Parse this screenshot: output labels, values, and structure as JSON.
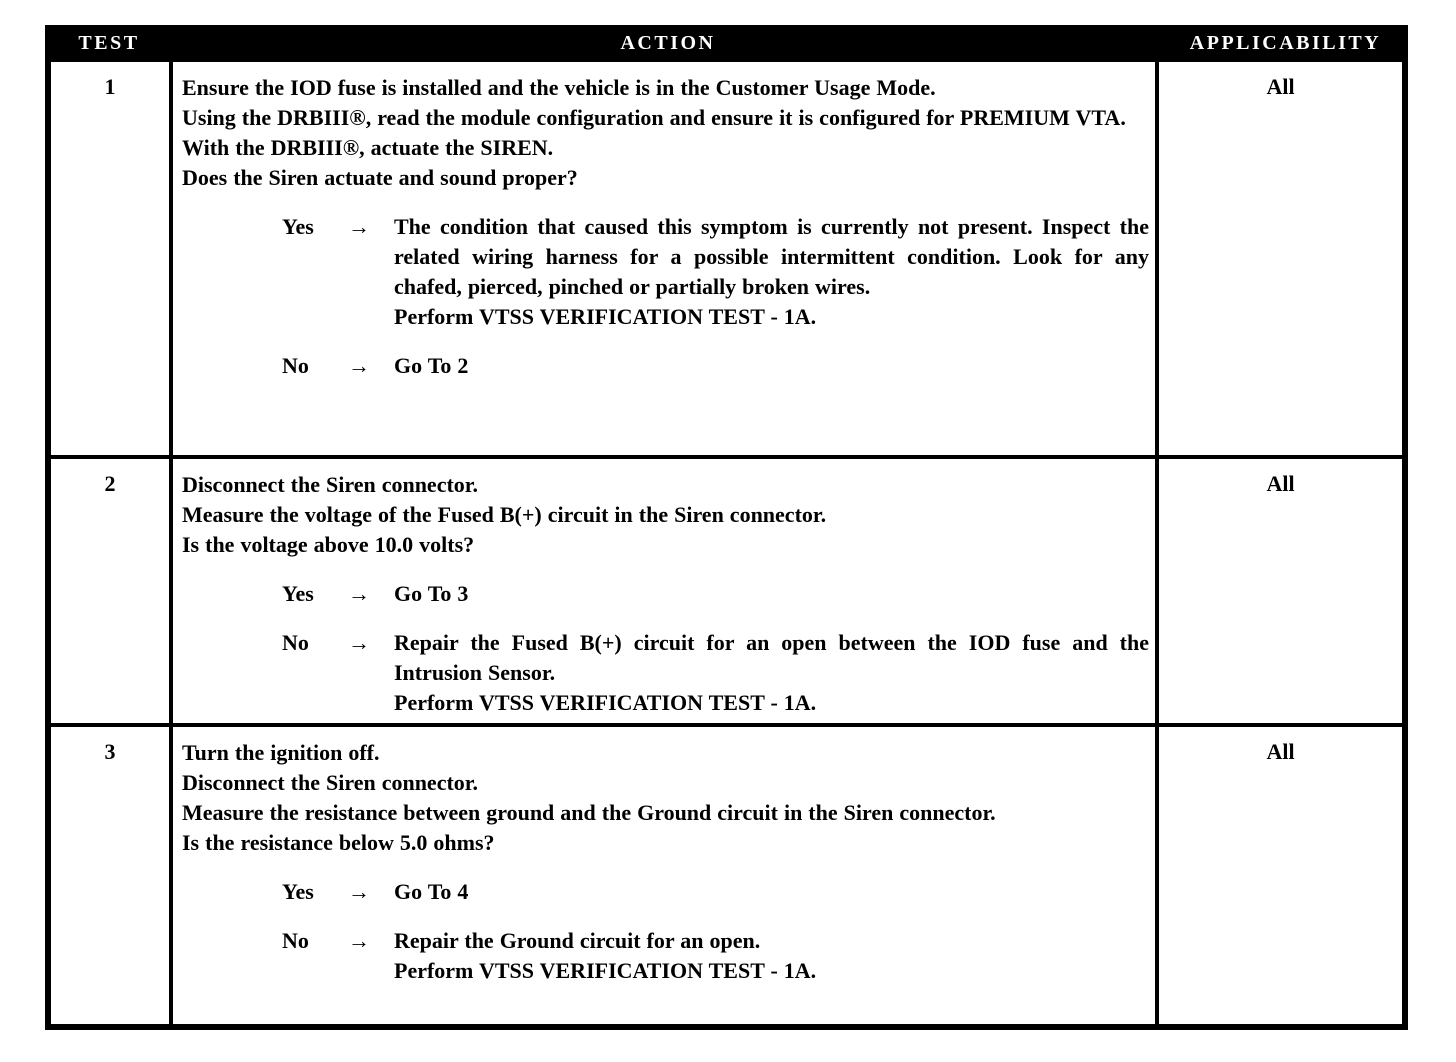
{
  "page": {
    "background": "#ffffff",
    "ink": "#000000"
  },
  "table": {
    "columns": [
      {
        "label": "TEST"
      },
      {
        "label": "ACTION"
      },
      {
        "label": "APPLICABILITY"
      }
    ],
    "rows": [
      {
        "test": "1",
        "applicability": "All",
        "steps": [
          "Ensure the IOD fuse is installed and the vehicle is in the Customer Usage Mode.",
          "Using the DRBIII®, read the module configuration and ensure it is configured for PREMIUM VTA.",
          "With the DRBIII®, actuate the SIREN.",
          "Does the Siren actuate and sound proper?"
        ],
        "yes": {
          "label": "Yes",
          "arrow": "→",
          "result": [
            "The condition that caused this symptom is currently not present. Inspect the related wiring harness for a possible intermittent condition. Look for any chafed, pierced, pinched or partially broken wires.",
            "Perform VTSS VERIFICATION TEST - 1A."
          ]
        },
        "no": {
          "label": "No",
          "arrow": "→",
          "result": [
            "Go To  2"
          ]
        }
      },
      {
        "test": "2",
        "applicability": "All",
        "steps": [
          "Disconnect the Siren connector.",
          "Measure the voltage of the Fused B(+) circuit in the Siren connector.",
          "Is the voltage above 10.0 volts?"
        ],
        "yes": {
          "label": "Yes",
          "arrow": "→",
          "result": [
            "Go To  3"
          ]
        },
        "no": {
          "label": "No",
          "arrow": "→",
          "result": [
            "Repair the Fused B(+) circuit for an open between the IOD fuse and the Intrusion Sensor.",
            "Perform VTSS VERIFICATION TEST - 1A."
          ]
        }
      },
      {
        "test": "3",
        "applicability": "All",
        "steps": [
          "Turn the ignition off.",
          "Disconnect the Siren connector.",
          "Measure the resistance between ground and the Ground circuit in the Siren connector.",
          "Is the resistance below 5.0 ohms?"
        ],
        "yes": {
          "label": "Yes",
          "arrow": "→",
          "result": [
            "Go To  4"
          ]
        },
        "no": {
          "label": "No",
          "arrow": "→",
          "result": [
            "Repair the Ground circuit for an open.",
            "Perform VTSS VERIFICATION TEST - 1A."
          ]
        }
      }
    ]
  }
}
